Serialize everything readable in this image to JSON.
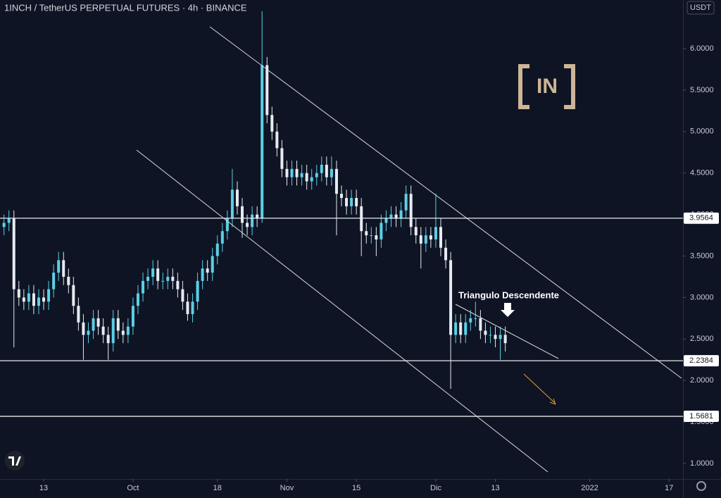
{
  "chart_data": {
    "type": "candlestick",
    "title": "1INCH / TetherUS PERPETUAL FUTURES · 4h · BINANCE",
    "currency": "USDT",
    "logo": "IN",
    "annotation": "Triangulo Descendente",
    "up_color": "#5ad1e6",
    "down_color": "#e6ebf2",
    "x": [
      248,
      249,
      250,
      251,
      252,
      253,
      254,
      255,
      256,
      257,
      258,
      259,
      260,
      261,
      262,
      263,
      264,
      265,
      266,
      267,
      268,
      269,
      270,
      271,
      272,
      273,
      274,
      275,
      276,
      277,
      278,
      279,
      280,
      281,
      282,
      283,
      284,
      285,
      286,
      287,
      288,
      289,
      290,
      291,
      292,
      293,
      294,
      295,
      296,
      297,
      298,
      299,
      300,
      301,
      302,
      303,
      304,
      305,
      306,
      307,
      308,
      309,
      310,
      311,
      312,
      313,
      314,
      315,
      316,
      317,
      318,
      319,
      320,
      321,
      322,
      323,
      324,
      325,
      326,
      327,
      328,
      329,
      330,
      331,
      332,
      333,
      334,
      335,
      336,
      337,
      338,
      339,
      340,
      341,
      342,
      343,
      344,
      345,
      346,
      347,
      348,
      349
    ],
    "open": [
      3.85,
      3.9,
      3.95,
      3.1,
      3.0,
      2.95,
      3.05,
      2.9,
      3.0,
      2.95,
      3.1,
      3.3,
      3.45,
      3.25,
      3.15,
      2.9,
      2.7,
      2.55,
      2.6,
      2.75,
      2.65,
      2.55,
      2.45,
      2.75,
      2.6,
      2.55,
      2.65,
      2.9,
      3.05,
      3.2,
      3.25,
      3.35,
      3.2,
      3.2,
      3.25,
      3.2,
      3.1,
      2.95,
      2.8,
      2.95,
      3.2,
      3.35,
      3.3,
      3.5,
      3.65,
      3.8,
      3.95,
      4.3,
      4.1,
      3.9,
      3.85,
      4.0,
      3.95,
      5.8,
      5.2,
      5.0,
      4.8,
      4.55,
      4.45,
      4.55,
      4.45,
      4.5,
      4.4,
      4.45,
      4.5,
      4.6,
      4.45,
      4.55,
      4.25,
      4.2,
      4.1,
      4.2,
      4.1,
      3.8,
      3.75,
      3.75,
      3.7,
      3.9,
      3.95,
      4.0,
      3.95,
      4.05,
      4.25,
      3.85,
      3.75,
      3.65,
      3.75,
      3.7,
      3.85,
      3.6,
      3.45,
      2.55,
      2.7,
      2.55,
      2.7,
      2.75,
      2.75,
      2.6,
      2.55,
      2.55,
      2.5,
      2.55
    ],
    "high": [
      4.0,
      4.05,
      4.05,
      3.2,
      3.1,
      3.15,
      3.15,
      3.1,
      3.1,
      3.2,
      3.4,
      3.55,
      3.55,
      3.35,
      3.25,
      3.0,
      2.8,
      2.7,
      2.85,
      2.85,
      2.75,
      2.65,
      2.85,
      2.85,
      2.7,
      2.75,
      3.0,
      3.15,
      3.3,
      3.35,
      3.45,
      3.45,
      3.3,
      3.35,
      3.35,
      3.3,
      3.2,
      3.05,
      3.05,
      3.3,
      3.45,
      3.45,
      3.6,
      3.75,
      3.9,
      4.05,
      4.55,
      4.4,
      4.2,
      4.0,
      4.1,
      4.1,
      6.45,
      5.9,
      5.3,
      5.1,
      4.9,
      4.65,
      4.65,
      4.65,
      4.6,
      4.6,
      4.55,
      4.6,
      4.7,
      4.7,
      4.7,
      4.65,
      4.35,
      4.3,
      4.3,
      4.3,
      4.2,
      3.9,
      3.85,
      3.85,
      4.0,
      4.05,
      4.1,
      4.1,
      4.15,
      4.35,
      4.35,
      3.95,
      3.85,
      3.85,
      3.85,
      4.25,
      3.95,
      3.7,
      3.55,
      2.8,
      2.8,
      2.8,
      2.85,
      2.95,
      2.85,
      2.7,
      2.65,
      2.65,
      2.65,
      2.65
    ],
    "low": [
      3.75,
      3.8,
      2.4,
      2.9,
      2.85,
      2.85,
      2.8,
      2.8,
      2.85,
      2.85,
      3.0,
      3.2,
      3.15,
      3.05,
      2.8,
      2.6,
      2.25,
      2.45,
      2.5,
      2.55,
      2.45,
      2.25,
      2.35,
      2.5,
      2.45,
      2.45,
      2.55,
      2.8,
      2.95,
      3.1,
      3.15,
      3.1,
      3.1,
      3.1,
      3.1,
      3.0,
      2.85,
      2.72,
      2.7,
      2.85,
      3.1,
      3.2,
      3.2,
      3.4,
      3.55,
      3.7,
      3.85,
      4.0,
      3.72,
      3.75,
      3.75,
      3.85,
      3.9,
      5.1,
      4.9,
      4.7,
      4.45,
      4.35,
      4.35,
      4.35,
      4.35,
      4.3,
      4.3,
      4.35,
      4.4,
      4.35,
      4.35,
      3.75,
      4.1,
      4.0,
      4.0,
      4.0,
      3.5,
      3.65,
      3.65,
      3.5,
      3.6,
      3.8,
      3.85,
      3.85,
      3.85,
      3.95,
      3.75,
      3.65,
      3.35,
      3.55,
      3.6,
      3.6,
      3.5,
      3.35,
      1.9,
      2.45,
      2.45,
      2.45,
      2.6,
      2.65,
      2.5,
      2.45,
      2.45,
      2.4,
      2.25,
      2.35
    ],
    "close": [
      3.9,
      3.95,
      3.1,
      3.0,
      2.95,
      3.05,
      2.9,
      3.0,
      2.95,
      3.1,
      3.3,
      3.45,
      3.25,
      3.15,
      2.9,
      2.7,
      2.55,
      2.6,
      2.75,
      2.65,
      2.55,
      2.45,
      2.75,
      2.6,
      2.55,
      2.65,
      2.9,
      3.05,
      3.2,
      3.25,
      3.35,
      3.2,
      3.2,
      3.25,
      3.2,
      3.1,
      2.95,
      2.8,
      2.95,
      3.2,
      3.35,
      3.3,
      3.5,
      3.65,
      3.8,
      3.95,
      4.3,
      4.1,
      3.9,
      3.85,
      4.0,
      3.95,
      5.8,
      5.2,
      5.0,
      4.8,
      4.55,
      4.45,
      4.55,
      4.45,
      4.5,
      4.4,
      4.45,
      4.5,
      4.6,
      4.45,
      4.55,
      4.25,
      4.2,
      4.1,
      4.2,
      4.1,
      3.8,
      3.75,
      3.75,
      3.7,
      3.9,
      3.95,
      4.0,
      3.95,
      4.05,
      4.25,
      3.85,
      3.75,
      3.65,
      3.75,
      3.7,
      3.85,
      3.6,
      3.45,
      2.55,
      2.7,
      2.55,
      2.7,
      2.75,
      2.75,
      2.6,
      2.55,
      2.55,
      2.5,
      2.55,
      2.45
    ],
    "levels": [
      3.9564,
      2.2384,
      1.5681
    ],
    "xlim": [
      247.2,
      384.8
    ],
    "xticks": [
      {
        "value": 256,
        "label": "13"
      },
      {
        "value": 274,
        "label": "Oct"
      },
      {
        "value": 291,
        "label": "18"
      },
      {
        "value": 305,
        "label": "Nov"
      },
      {
        "value": 319,
        "label": "15"
      },
      {
        "value": 335,
        "label": "Dic"
      },
      {
        "value": 347,
        "label": "13"
      },
      {
        "value": 366,
        "label": "2022"
      },
      {
        "value": 382,
        "label": "17"
      }
    ],
    "ylim": [
      0.813,
      6.586
    ],
    "yticks": [
      {
        "value": 1,
        "label": "1.0000"
      },
      {
        "value": 1.5,
        "label": "1.5000"
      },
      {
        "value": 2,
        "label": "2.0000"
      },
      {
        "value": 2.5,
        "label": "2.5000"
      },
      {
        "value": 3,
        "label": "3.0000"
      },
      {
        "value": 3.5,
        "label": "3.5000"
      },
      {
        "value": 4,
        "label": "4.0000"
      },
      {
        "value": 4.5,
        "label": "4.5000"
      },
      {
        "value": 5,
        "label": "5.0000"
      },
      {
        "value": 5.5,
        "label": "5.5000"
      },
      {
        "value": 6,
        "label": "6.0000"
      }
    ],
    "grid": false
  }
}
